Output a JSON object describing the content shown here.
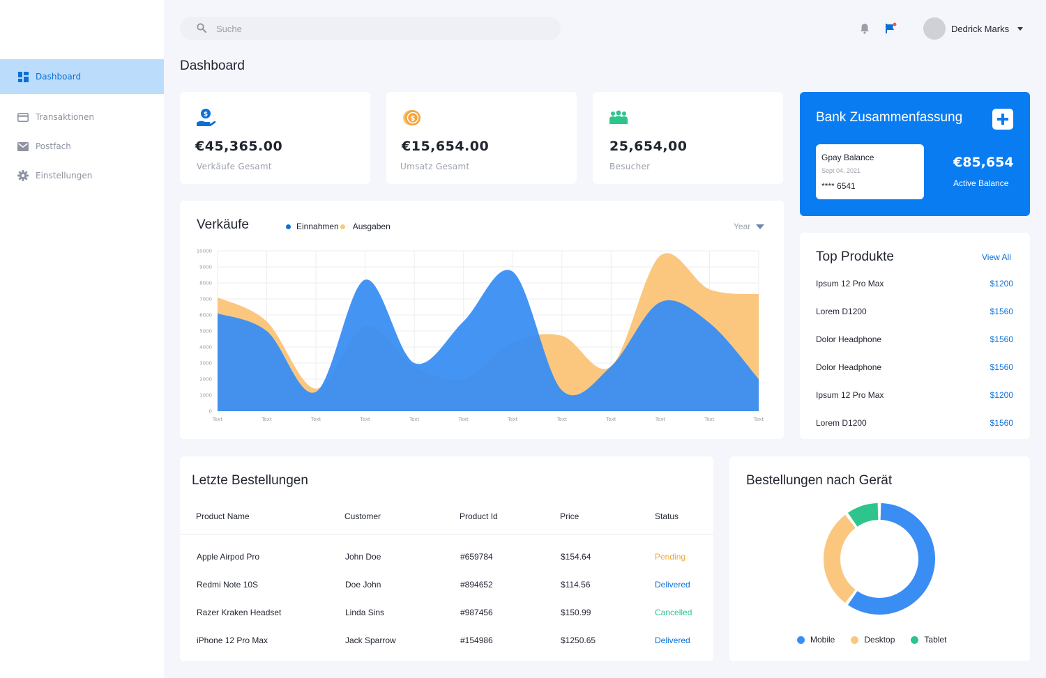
{
  "sidebar": {
    "items": [
      {
        "label": "Dashboard",
        "icon": "dashboard-icon",
        "active": true
      },
      {
        "label": "Transaktionen",
        "icon": "credit-card-icon",
        "active": false
      },
      {
        "label": "Postfach",
        "icon": "mail-icon",
        "active": false
      },
      {
        "label": "Einstellungen",
        "icon": "gear-icon",
        "active": false
      }
    ]
  },
  "header": {
    "search_placeholder": "Suche",
    "user_name": "Dedrick Marks",
    "icons": [
      "bell-icon",
      "flag-icon"
    ]
  },
  "page_title": "Dashboard",
  "stats": [
    {
      "value": "€45,365.00",
      "label": "Verkäufe Gesamt",
      "icon": "money-hand-icon",
      "color": "#0b6fd6"
    },
    {
      "value": "€15,654.00",
      "label": "Umsatz Gesamt",
      "icon": "coin-icon",
      "color": "#f5a53a"
    },
    {
      "value": "25,654,00",
      "label": "Besucher",
      "icon": "users-icon",
      "color": "#2ec58c"
    }
  ],
  "bank": {
    "title": "Bank Zusammenfassung",
    "card_title": "Gpay Balance",
    "card_date": "Sept 04, 2021",
    "card_number": "**** 6541",
    "balance": "€85,654",
    "balance_label": "Active Balance"
  },
  "sales": {
    "title": "Verkäufe",
    "legend": [
      "Einnahmen",
      "Ausgaben"
    ],
    "period": "Year"
  },
  "chart_data": {
    "type": "area",
    "categories": [
      "Text",
      "Text",
      "Text",
      "Text",
      "Text",
      "Text",
      "Text",
      "Text",
      "Text",
      "Text",
      "Text",
      "Text"
    ],
    "yticks": [
      0,
      1000,
      2000,
      3000,
      4000,
      5000,
      6000,
      7000,
      8000,
      9000,
      10000
    ],
    "ylim": [
      0,
      10000
    ],
    "series": [
      {
        "name": "Ausgaben",
        "color": "#fbc77f",
        "values": [
          7100,
          5600,
          1400,
          5300,
          2800,
          2000,
          4300,
          4700,
          2800,
          9700,
          7600,
          7300
        ]
      },
      {
        "name": "Einnahmen",
        "color": "#3a8ef3",
        "values": [
          6100,
          5000,
          1200,
          8200,
          3000,
          5600,
          8700,
          1300,
          2800,
          6800,
          5500,
          2000
        ]
      }
    ]
  },
  "top_products": {
    "title": "Top Produkte",
    "view_all": "View All",
    "items": [
      {
        "name": "Ipsum 12 Pro Max",
        "price": "$1200"
      },
      {
        "name": "Lorem D1200",
        "price": "$1560"
      },
      {
        "name": "Dolor Headphone",
        "price": "$1560"
      },
      {
        "name": "Dolor Headphone",
        "price": "$1560"
      },
      {
        "name": "Ipsum 12 Pro Max",
        "price": "$1200"
      },
      {
        "name": "Lorem D1200",
        "price": "$1560"
      }
    ]
  },
  "orders": {
    "title": "Letzte Bestellungen",
    "columns": [
      "Product Name",
      "Customer",
      "Product Id",
      "Price",
      "Status"
    ],
    "rows": [
      {
        "product": "Apple Airpod Pro",
        "customer": "John Doe",
        "id": "#659784",
        "price": "$154.64",
        "status": "Pending",
        "status_color": "#f5a53a"
      },
      {
        "product": "Redmi Note 10S",
        "customer": "Doe John",
        "id": "#894652",
        "price": "$114.56",
        "status": "Delivered",
        "status_color": "#0b6fd6"
      },
      {
        "product": "Razer Kraken Headset",
        "customer": "Linda Sins",
        "id": "#987456",
        "price": "$150.99",
        "status": "Cancelled",
        "status_color": "#2ec58c"
      },
      {
        "product": "iPhone 12 Pro Max",
        "customer": "Jack Sparrow",
        "id": "#154986",
        "price": "$1250.65",
        "status": "Delivered",
        "status_color": "#0b6fd6"
      }
    ]
  },
  "devices": {
    "title": "Bestellungen nach Gerät",
    "segments": [
      {
        "name": "Mobile",
        "value": 60,
        "color": "#3a8ef3"
      },
      {
        "name": "Desktop",
        "value": 30,
        "color": "#fbc77f"
      },
      {
        "name": "Tablet",
        "value": 10,
        "color": "#2ec58c"
      }
    ]
  }
}
